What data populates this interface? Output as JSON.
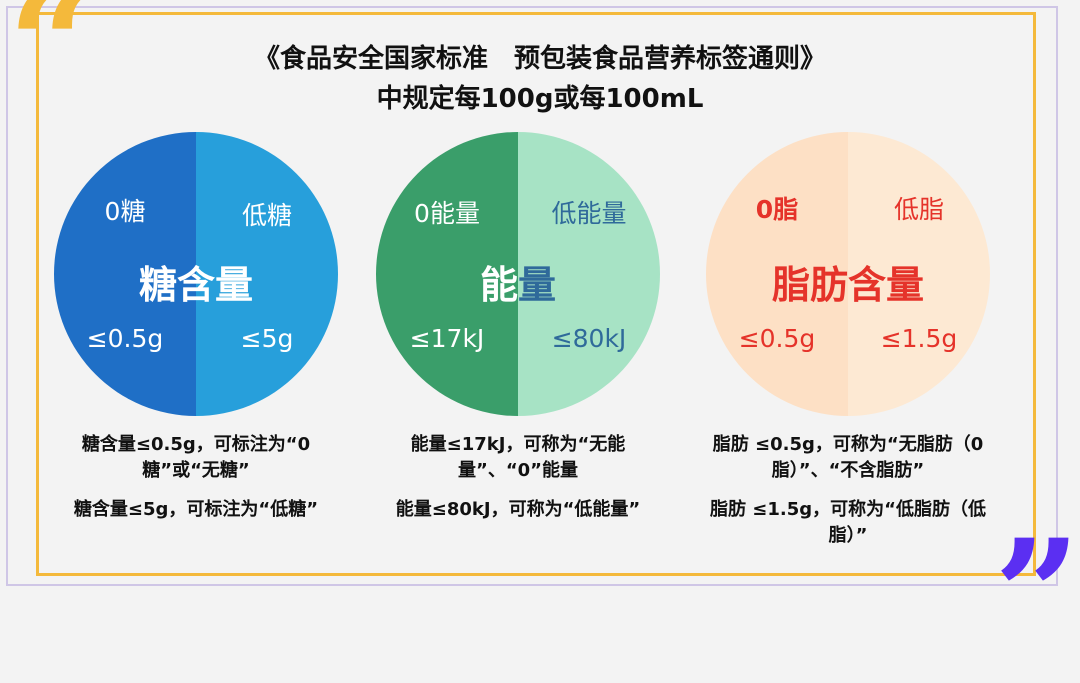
{
  "title": {
    "line1": "《食品安全国家标准　预包装食品营养标签通则》",
    "line2": "中规定每100g或每100mL"
  },
  "colors": {
    "sugar_left": "#1f6fc6",
    "sugar_right": "#279fdb",
    "energy_left": "#3a9e6a",
    "energy_right": "#a7e3c5",
    "fat_left": "#fde0c5",
    "fat_right": "#fde9d3",
    "fat_text": "#e5332a",
    "energy_text_dark": "#2f6a9a",
    "frame_orange": "#f4b93b",
    "quote_purple": "#5b2ff2"
  },
  "circles": [
    {
      "id": "sugar",
      "left_label": "0糖",
      "right_label": "低糖",
      "main_label": "糖含量",
      "left_limit": "≤0.5g",
      "right_limit": "≤5g",
      "desc1": "糖含量≤0.5g，可标注为“0糖”或“无糖”",
      "desc2": "糖含量≤5g，可标注为“低糖”"
    },
    {
      "id": "energy",
      "left_label": "0能量",
      "right_label": "低能量",
      "main_label": "能量",
      "left_limit": "≤17kJ",
      "right_limit": "≤80kJ",
      "desc1": "能量≤17kJ，可称为“无能量”、“0”能量",
      "desc2": "能量≤80kJ，可称为“低能量”"
    },
    {
      "id": "fat",
      "left_label": "0脂",
      "right_label": "低脂",
      "main_label": "脂肪含量",
      "left_limit": "≤0.5g",
      "right_limit": "≤1.5g",
      "desc1": "脂肪 ≤0.5g，可称为“无脂肪（0脂）”、“不含脂肪”",
      "desc2": "脂肪 ≤1.5g，可称为“低脂肪（低脂）”"
    }
  ]
}
